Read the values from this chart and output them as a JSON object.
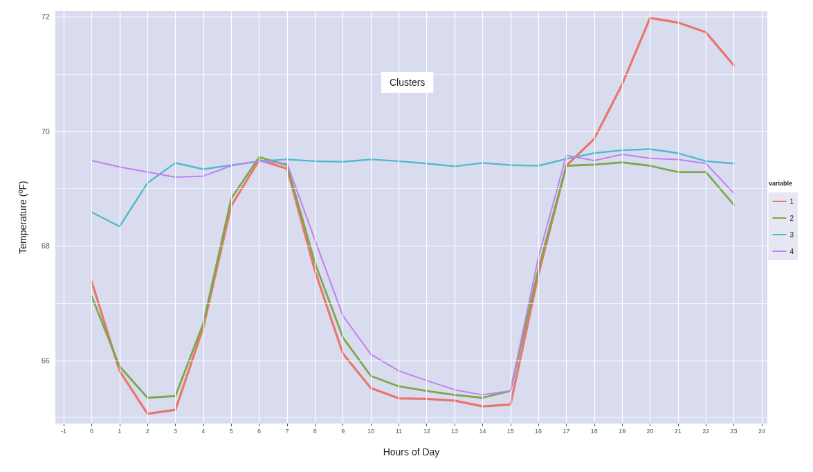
{
  "chart_data": {
    "type": "line",
    "title": "Clusters",
    "xlabel": "Hours of Day",
    "ylabel": "Temperature (ºF)",
    "legend_title": "variable",
    "legend": "right",
    "grid": true,
    "x": [
      0,
      1,
      2,
      3,
      4,
      5,
      6,
      7,
      8,
      9,
      10,
      11,
      12,
      13,
      14,
      15,
      16,
      17,
      18,
      19,
      20,
      21,
      22,
      23
    ],
    "xlim": [
      -1.3,
      24.2
    ],
    "xticks": [
      -1,
      0,
      1,
      2,
      3,
      4,
      5,
      6,
      7,
      8,
      9,
      10,
      11,
      12,
      13,
      14,
      15,
      16,
      17,
      18,
      19,
      20,
      21,
      22,
      23,
      24
    ],
    "ylim": [
      64.9,
      72.1
    ],
    "yticks": [
      {
        "value": 65,
        "label": null
      },
      66,
      {
        "value": 67,
        "label": null
      },
      68,
      {
        "value": 69,
        "label": null
      },
      70,
      {
        "value": 71,
        "label": null
      },
      72
    ],
    "series": [
      {
        "name": "1",
        "color": "#e8766d",
        "values": [
          67.38,
          65.82,
          65.07,
          65.14,
          66.58,
          68.7,
          69.5,
          69.35,
          67.56,
          66.12,
          65.52,
          65.34,
          65.33,
          65.3,
          65.2,
          65.23,
          67.5,
          69.4,
          69.87,
          70.82,
          71.98,
          71.9,
          71.73,
          71.15
        ]
      },
      {
        "name": "2",
        "color": "#7aa84a",
        "values": [
          67.12,
          65.9,
          65.35,
          65.38,
          66.65,
          68.83,
          69.55,
          69.41,
          67.7,
          66.4,
          65.73,
          65.55,
          65.47,
          65.4,
          65.35,
          65.47,
          67.6,
          69.4,
          69.42,
          69.46,
          69.4,
          69.29,
          69.29,
          68.72
        ]
      },
      {
        "name": "3",
        "color": "#4dbacc",
        "values": [
          68.59,
          68.34,
          69.1,
          69.45,
          69.34,
          69.41,
          69.48,
          69.51,
          69.48,
          69.47,
          69.51,
          69.48,
          69.44,
          69.39,
          69.45,
          69.41,
          69.4,
          69.52,
          69.62,
          69.67,
          69.69,
          69.62,
          69.48,
          69.44
        ]
      },
      {
        "name": "4",
        "color": "#c080f0",
        "values": [
          69.49,
          69.38,
          69.29,
          69.2,
          69.22,
          69.4,
          69.48,
          69.44,
          68.1,
          66.78,
          66.11,
          65.82,
          65.65,
          65.49,
          65.4,
          65.47,
          67.8,
          69.58,
          69.49,
          69.6,
          69.53,
          69.51,
          69.44,
          68.92
        ]
      }
    ]
  }
}
